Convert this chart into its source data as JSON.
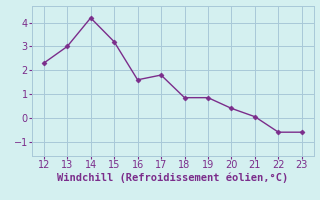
{
  "x": [
    12,
    13,
    14,
    15,
    16,
    17,
    18,
    19,
    20,
    21,
    22,
    23
  ],
  "y": [
    2.3,
    3.0,
    4.2,
    3.2,
    1.6,
    1.8,
    0.85,
    0.85,
    0.4,
    0.05,
    -0.6,
    -0.6
  ],
  "line_color": "#7b2d8b",
  "marker_color": "#7b2d8b",
  "bg_color": "#d4f0f0",
  "grid_color": "#a8c8d8",
  "xlabel": "Windchill (Refroidissement éolien,°C)",
  "xlabel_color": "#7b2d8b",
  "xlim": [
    11.5,
    23.5
  ],
  "ylim": [
    -1.6,
    4.7
  ],
  "xticks": [
    12,
    13,
    14,
    15,
    16,
    17,
    18,
    19,
    20,
    21,
    22,
    23
  ],
  "yticks": [
    -1,
    0,
    1,
    2,
    3,
    4
  ],
  "tick_label_color": "#7b2d8b",
  "font_size": 7.0,
  "xlabel_fontsize": 7.5
}
